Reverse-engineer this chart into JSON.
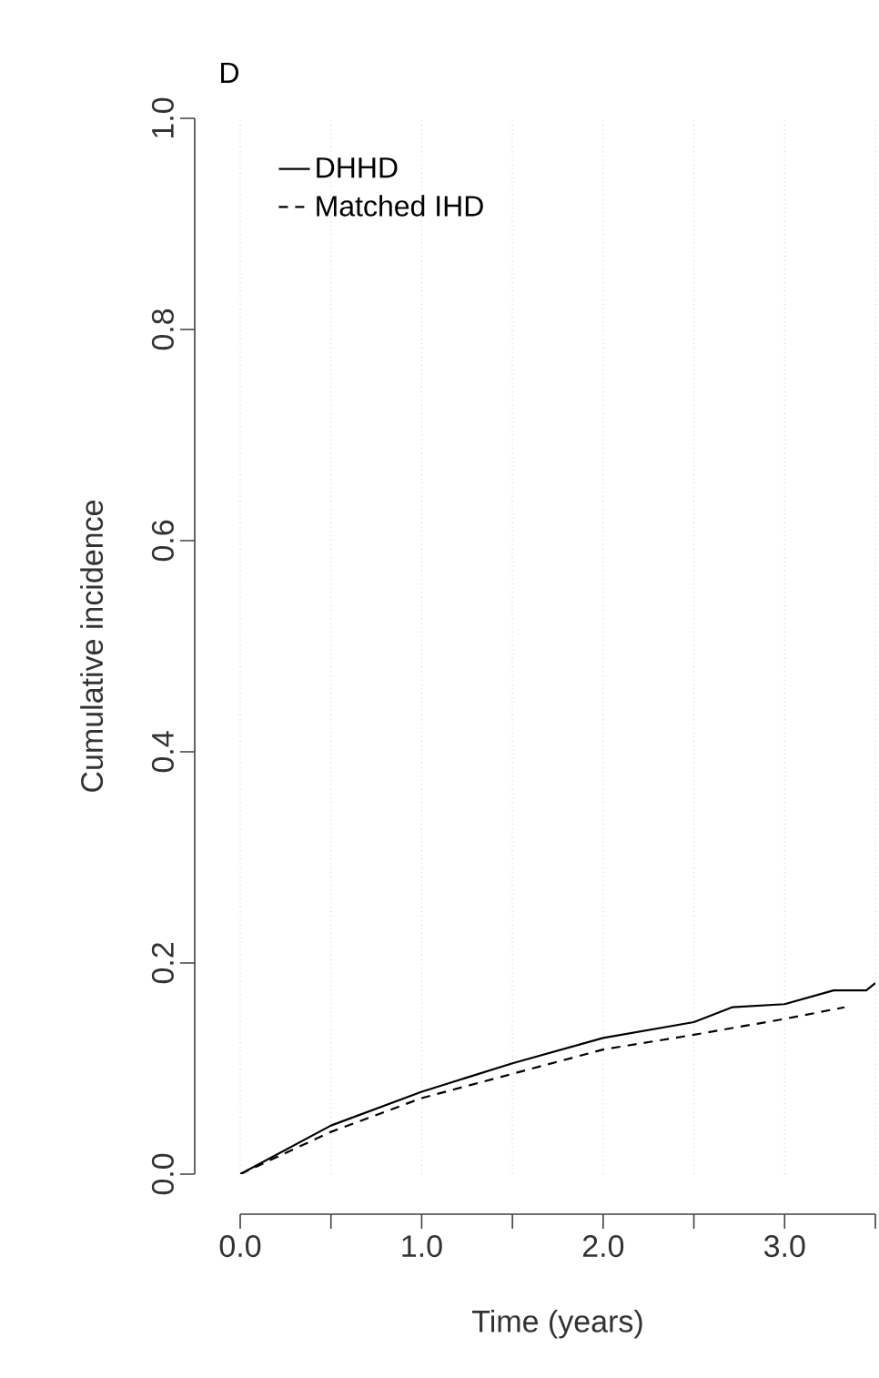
{
  "chart_data": {
    "type": "line",
    "title": "D",
    "xlabel": "Time (years)",
    "ylabel": "Cumulative incidence",
    "xlim": [
      0,
      3.5
    ],
    "ylim": [
      0,
      1
    ],
    "xticks": [
      {
        "value": 0,
        "label": "0.0"
      },
      {
        "value": 0.5,
        "label": null
      },
      {
        "value": 1,
        "label": "1.0"
      },
      {
        "value": 1.5,
        "label": null
      },
      {
        "value": 2,
        "label": "2.0"
      },
      {
        "value": 2.5,
        "label": null
      },
      {
        "value": 3,
        "label": "3.0"
      },
      {
        "value": 3.5,
        "label": null
      }
    ],
    "yticks": [
      {
        "value": 0,
        "label": "0.0"
      },
      {
        "value": 0.2,
        "label": "0.2"
      },
      {
        "value": 0.4,
        "label": "0.4"
      },
      {
        "value": 0.6,
        "label": "0.6"
      },
      {
        "value": 0.8,
        "label": "0.8"
      },
      {
        "value": 1,
        "label": "1.0"
      }
    ],
    "grid": "x",
    "legend": "top left",
    "series": [
      {
        "name": "DHHD",
        "color": "#000000",
        "line_style": "solid",
        "x": [
          0,
          0.5,
          1,
          1.5,
          2,
          2.5,
          2.71,
          3,
          3.27,
          3.45,
          3.5
        ],
        "values": [
          0,
          0.046,
          0.078,
          0.105,
          0.129,
          0.144,
          0.158,
          0.161,
          0.174,
          0.174,
          0.181
        ]
      },
      {
        "name": "Matched IHD",
        "color": "#000000",
        "line_style": "dashed",
        "x": [
          0,
          0.5,
          1,
          1.5,
          2,
          2.5,
          3,
          3.33
        ],
        "values": [
          0,
          0.04,
          0.072,
          0.095,
          0.118,
          0.132,
          0.147,
          0.158
        ]
      }
    ]
  }
}
